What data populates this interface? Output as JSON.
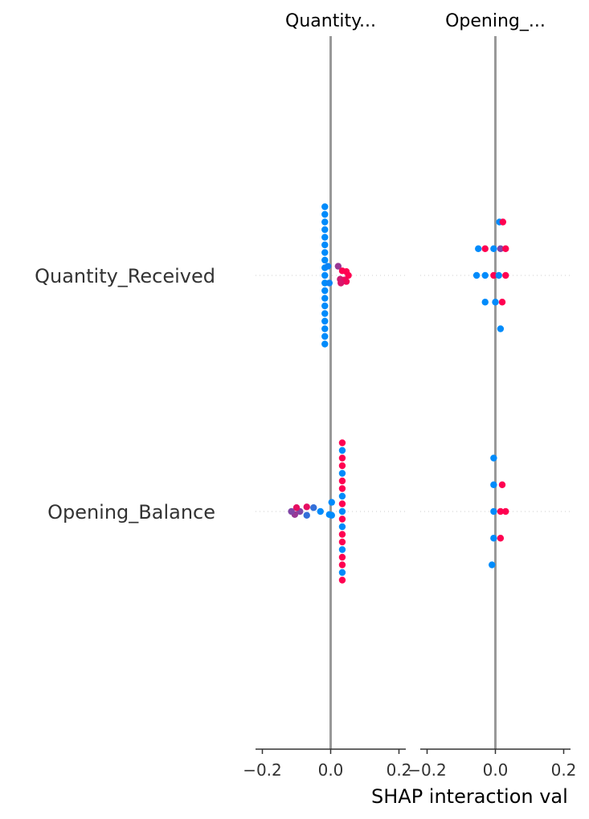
{
  "chart_data": {
    "type": "scatter",
    "title": "",
    "xlabel": "SHAP interaction val",
    "rows": [
      "Quantity_Received",
      "Opening_Balance"
    ],
    "panels": [
      {
        "title": "Quantity...",
        "xlim": [
          -0.22,
          0.22
        ],
        "xticks": [
          -0.2,
          0.0,
          0.2
        ],
        "xtick_labels": [
          "−0.2",
          "0.0",
          "0.2"
        ],
        "series": [
          {
            "row": "Quantity_Received",
            "points": [
              {
                "x": -0.017,
                "jitter": -0.9,
                "v": 0.0
              },
              {
                "x": -0.017,
                "jitter": -0.8,
                "v": 0.0
              },
              {
                "x": -0.017,
                "jitter": -0.7,
                "v": 0.0
              },
              {
                "x": -0.017,
                "jitter": -0.6,
                "v": 0.0
              },
              {
                "x": -0.017,
                "jitter": -0.5,
                "v": 0.0
              },
              {
                "x": -0.017,
                "jitter": -0.4,
                "v": 0.0
              },
              {
                "x": -0.017,
                "jitter": -0.3,
                "v": 0.0
              },
              {
                "x": -0.017,
                "jitter": -0.2,
                "v": 0.0
              },
              {
                "x": -0.017,
                "jitter": -0.1,
                "v": 0.0
              },
              {
                "x": -0.017,
                "jitter": 0.0,
                "v": 0.0
              },
              {
                "x": -0.017,
                "jitter": 0.1,
                "v": 0.0
              },
              {
                "x": -0.017,
                "jitter": 0.2,
                "v": 0.0
              },
              {
                "x": -0.017,
                "jitter": 0.3,
                "v": 0.0
              },
              {
                "x": -0.017,
                "jitter": 0.4,
                "v": 0.0
              },
              {
                "x": -0.017,
                "jitter": 0.5,
                "v": 0.0
              },
              {
                "x": -0.017,
                "jitter": 0.6,
                "v": 0.0
              },
              {
                "x": -0.017,
                "jitter": 0.7,
                "v": 0.0
              },
              {
                "x": -0.017,
                "jitter": 0.8,
                "v": 0.0
              },
              {
                "x": -0.017,
                "jitter": 0.9,
                "v": 0.0
              },
              {
                "x": -0.008,
                "jitter": -0.12,
                "v": 0.05
              },
              {
                "x": -0.004,
                "jitter": 0.1,
                "v": 0.05
              },
              {
                "x": 0.022,
                "jitter": -0.12,
                "v": 0.6
              },
              {
                "x": 0.028,
                "jitter": 0.05,
                "v": 0.8
              },
              {
                "x": 0.034,
                "jitter": -0.06,
                "v": 1.0
              },
              {
                "x": 0.04,
                "jitter": 0.06,
                "v": 0.9
              },
              {
                "x": 0.046,
                "jitter": -0.05,
                "v": 1.0
              },
              {
                "x": 0.052,
                "jitter": 0.0,
                "v": 1.0
              },
              {
                "x": 0.046,
                "jitter": 0.08,
                "v": 0.95
              },
              {
                "x": 0.03,
                "jitter": 0.1,
                "v": 0.85
              }
            ]
          },
          {
            "row": "Opening_Balance",
            "points": [
              {
                "x": 0.034,
                "jitter": -0.9,
                "v": 1.0
              },
              {
                "x": 0.034,
                "jitter": -0.8,
                "v": 0.0
              },
              {
                "x": 0.034,
                "jitter": -0.7,
                "v": 1.0
              },
              {
                "x": 0.034,
                "jitter": -0.6,
                "v": 1.0
              },
              {
                "x": 0.034,
                "jitter": -0.5,
                "v": 0.0
              },
              {
                "x": 0.034,
                "jitter": -0.4,
                "v": 1.0
              },
              {
                "x": 0.034,
                "jitter": -0.3,
                "v": 1.0
              },
              {
                "x": 0.034,
                "jitter": -0.2,
                "v": 0.0
              },
              {
                "x": 0.034,
                "jitter": -0.1,
                "v": 1.0
              },
              {
                "x": 0.034,
                "jitter": 0.0,
                "v": 0.0
              },
              {
                "x": 0.034,
                "jitter": 0.1,
                "v": 1.0
              },
              {
                "x": 0.034,
                "jitter": 0.2,
                "v": 0.0
              },
              {
                "x": 0.034,
                "jitter": 0.3,
                "v": 1.0
              },
              {
                "x": 0.034,
                "jitter": 0.4,
                "v": 1.0
              },
              {
                "x": 0.034,
                "jitter": 0.5,
                "v": 0.0
              },
              {
                "x": 0.034,
                "jitter": 0.6,
                "v": 1.0
              },
              {
                "x": 0.034,
                "jitter": 0.7,
                "v": 1.0
              },
              {
                "x": 0.034,
                "jitter": 0.8,
                "v": 0.0
              },
              {
                "x": 0.034,
                "jitter": 0.9,
                "v": 1.0
              },
              {
                "x": 0.003,
                "jitter": -0.12,
                "v": 0.0
              },
              {
                "x": 0.003,
                "jitter": 0.05,
                "v": 0.0
              },
              {
                "x": -0.004,
                "jitter": 0.04,
                "v": 0.0
              },
              {
                "x": -0.03,
                "jitter": 0.0,
                "v": 0.0
              },
              {
                "x": -0.05,
                "jitter": -0.05,
                "v": 0.2
              },
              {
                "x": -0.07,
                "jitter": 0.05,
                "v": 0.2
              },
              {
                "x": -0.07,
                "jitter": -0.06,
                "v": 0.9
              },
              {
                "x": -0.09,
                "jitter": 0.0,
                "v": 0.5
              },
              {
                "x": -0.1,
                "jitter": -0.05,
                "v": 0.9
              },
              {
                "x": -0.105,
                "jitter": 0.04,
                "v": 0.6
              },
              {
                "x": -0.115,
                "jitter": 0.0,
                "v": 0.5
              }
            ]
          }
        ]
      },
      {
        "title": "Opening_...",
        "xlim": [
          -0.22,
          0.22
        ],
        "xticks": [
          -0.2,
          0.0,
          0.2
        ],
        "xtick_labels": [
          "−0.2",
          "0.0",
          "0.2"
        ],
        "series": [
          {
            "row": "Quantity_Received",
            "points": [
              {
                "x": 0.012,
                "jitter": -0.7,
                "v": 0.0
              },
              {
                "x": 0.022,
                "jitter": -0.7,
                "v": 1.0
              },
              {
                "x": -0.05,
                "jitter": -0.35,
                "v": 0.0
              },
              {
                "x": -0.03,
                "jitter": -0.35,
                "v": 1.0
              },
              {
                "x": -0.005,
                "jitter": -0.35,
                "v": 0.0
              },
              {
                "x": 0.015,
                "jitter": -0.35,
                "v": 0.5
              },
              {
                "x": 0.03,
                "jitter": -0.35,
                "v": 1.0
              },
              {
                "x": -0.055,
                "jitter": 0.0,
                "v": 0.0
              },
              {
                "x": -0.03,
                "jitter": 0.0,
                "v": 0.0
              },
              {
                "x": -0.005,
                "jitter": 0.0,
                "v": 1.0
              },
              {
                "x": 0.01,
                "jitter": 0.0,
                "v": 0.0
              },
              {
                "x": 0.03,
                "jitter": 0.0,
                "v": 1.0
              },
              {
                "x": -0.03,
                "jitter": 0.35,
                "v": 0.0
              },
              {
                "x": 0.0,
                "jitter": 0.35,
                "v": 0.0
              },
              {
                "x": 0.02,
                "jitter": 0.35,
                "v": 1.0
              },
              {
                "x": 0.015,
                "jitter": 0.7,
                "v": 0.0
              }
            ]
          },
          {
            "row": "Opening_Balance",
            "points": [
              {
                "x": -0.005,
                "jitter": -0.7,
                "v": 0.0
              },
              {
                "x": -0.005,
                "jitter": -0.35,
                "v": 0.0
              },
              {
                "x": 0.02,
                "jitter": -0.35,
                "v": 1.0
              },
              {
                "x": -0.005,
                "jitter": 0.0,
                "v": 0.0
              },
              {
                "x": 0.015,
                "jitter": 0.0,
                "v": 1.0
              },
              {
                "x": 0.03,
                "jitter": 0.0,
                "v": 1.0
              },
              {
                "x": -0.005,
                "jitter": 0.35,
                "v": 0.0
              },
              {
                "x": 0.015,
                "jitter": 0.35,
                "v": 1.0
              },
              {
                "x": -0.01,
                "jitter": 0.7,
                "v": 0.0
              }
            ]
          }
        ]
      }
    ],
    "colors": {
      "low": "#008bfb",
      "high": "#ff0051",
      "zero_line": "#999999",
      "row_line": "#cccccc"
    }
  }
}
